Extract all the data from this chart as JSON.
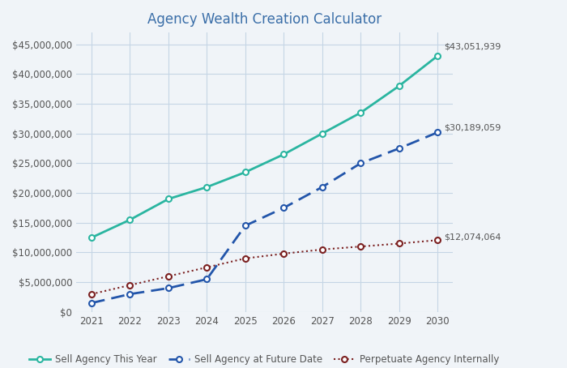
{
  "title": "Agency Wealth Creation Calculator",
  "years": [
    2021,
    2022,
    2023,
    2024,
    2025,
    2026,
    2027,
    2028,
    2029,
    2030
  ],
  "sell_this_year": [
    12500000,
    15500000,
    19000000,
    21000000,
    23500000,
    26500000,
    30000000,
    33500000,
    38000000,
    43051939
  ],
  "sell_future": [
    1500000,
    3000000,
    4000000,
    5500000,
    14500000,
    17500000,
    21000000,
    25000000,
    27500000,
    30189059
  ],
  "perpetuate": [
    3000000,
    4500000,
    6000000,
    7500000,
    9000000,
    9800000,
    10500000,
    11000000,
    11500000,
    12074064
  ],
  "sell_this_year_color": "#2ab5a0",
  "sell_future_color": "#2255aa",
  "perpetuate_color": "#7b2020",
  "title_color": "#3a6ea8",
  "label_color": "#555555",
  "background_color": "#f0f4f8",
  "plot_bg_color": "#f0f4f8",
  "grid_color": "#c5d5e5",
  "end_labels": {
    "sell_this_year": "$43,051,939",
    "sell_future": "$30,189,059",
    "perpetuate": "$12,074,064"
  },
  "legend": [
    "Sell Agency This Year",
    "Sell Agency at Future Date",
    "Perpetuate Agency Internally"
  ],
  "ylim": [
    0,
    47000000
  ],
  "yticks": [
    0,
    5000000,
    10000000,
    15000000,
    20000000,
    25000000,
    30000000,
    35000000,
    40000000,
    45000000
  ],
  "xlim_left": 2020.6,
  "xlim_right": 2030.4
}
